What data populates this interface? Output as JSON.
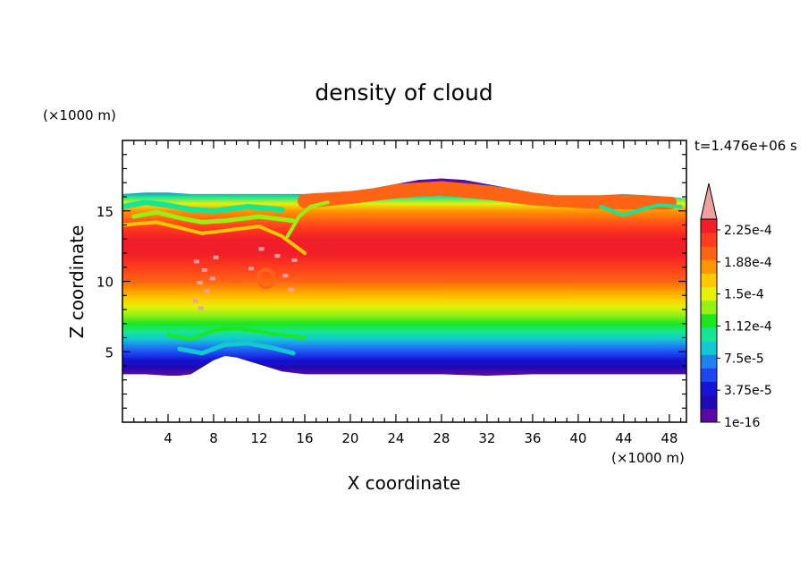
{
  "chart_data": {
    "type": "heatmap",
    "title": "density of cloud",
    "xlabel": "X coordinate",
    "ylabel": "Z coordinate",
    "x_unit": "(×1000 m)",
    "y_unit": "(×1000 m)",
    "time_label": "t=1.476e+06 s",
    "xlim": [
      0,
      49.5
    ],
    "ylim": [
      0,
      20
    ],
    "x_ticks": [
      4,
      8,
      12,
      16,
      20,
      24,
      28,
      32,
      36,
      40,
      44,
      48
    ],
    "y_ticks": [
      5,
      10,
      15
    ],
    "colorbar": {
      "labels": [
        "1e-16",
        "3.75e-5",
        "7.5e-5",
        "1.12e-4",
        "1.5e-4",
        "1.88e-4",
        "2.25e-4"
      ],
      "extend": "max",
      "colors": [
        "#5a0aa0",
        "#1e0ab4",
        "#1414d2",
        "#1e46f0",
        "#1e82f0",
        "#14c8d2",
        "#14e696",
        "#1ee61e",
        "#96f014",
        "#e6f00a",
        "#ffc800",
        "#ff9600",
        "#ff6414",
        "#ff3c1e",
        "#f01e28",
        "#f0a0a0"
      ]
    },
    "profile": {
      "z": [
        3.4,
        3.9,
        4.4,
        4.9,
        5.4,
        5.9,
        6.4,
        7.0,
        7.6,
        8.2,
        8.8,
        9.4,
        10.0,
        11.0,
        12.0,
        13.0,
        13.8,
        14.4,
        15.0,
        15.5,
        16.0,
        16.6,
        17.1
      ],
      "density_level": [
        0,
        1,
        2,
        3,
        4,
        5,
        6,
        7,
        8,
        9,
        10,
        11,
        12,
        13,
        14,
        14,
        13,
        12,
        11,
        9,
        6,
        3,
        0
      ]
    },
    "cloud_top_z": {
      "x": [
        0,
        2,
        4,
        6,
        8,
        10,
        12,
        14,
        16,
        18,
        20,
        22,
        24,
        26,
        28,
        30,
        32,
        34,
        36,
        38,
        40,
        42,
        44,
        46,
        48,
        49.5
      ],
      "z": [
        16.2,
        16.3,
        16.3,
        16.2,
        16.2,
        16.2,
        16.2,
        16.2,
        16.2,
        16.3,
        16.4,
        16.6,
        16.9,
        17.2,
        17.3,
        17.2,
        16.9,
        16.6,
        16.3,
        16.1,
        16.1,
        16.1,
        16.2,
        16.1,
        16.0,
        15.9
      ]
    },
    "cloud_base_z": {
      "x": [
        0,
        2,
        4,
        5,
        6,
        7,
        8,
        9,
        10,
        12,
        14,
        16,
        20,
        24,
        28,
        32,
        36,
        40,
        44,
        48,
        49.5
      ],
      "z": [
        3.4,
        3.4,
        3.3,
        3.3,
        3.4,
        3.9,
        4.4,
        4.7,
        4.6,
        4.1,
        3.6,
        3.4,
        3.4,
        3.4,
        3.4,
        3.3,
        3.4,
        3.4,
        3.4,
        3.4,
        3.4
      ]
    }
  }
}
